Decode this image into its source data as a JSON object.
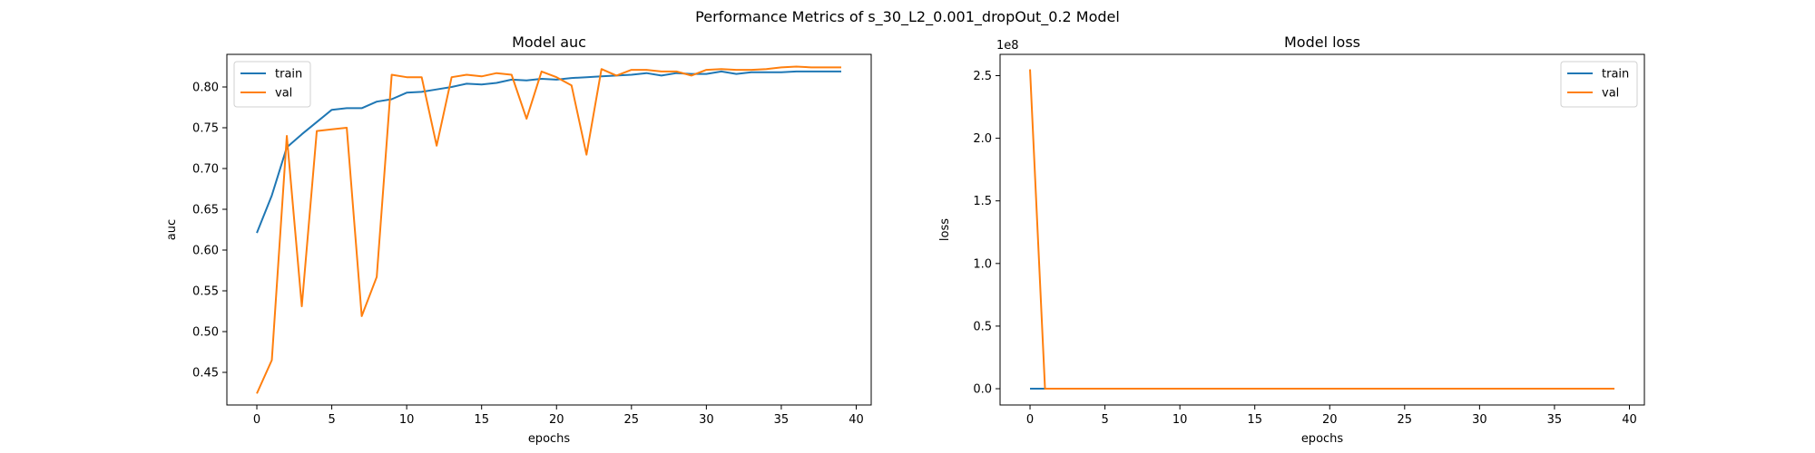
{
  "figure": {
    "suptitle": "Performance Metrics of s_30_L2_0.001_dropOut_0.2 Model"
  },
  "colors": {
    "train": "#1f77b4",
    "val": "#ff7f0e",
    "axes": "#000000"
  },
  "chart_data": [
    {
      "type": "line",
      "title": "Model auc",
      "xlabel": "epochs",
      "ylabel": "auc",
      "xlim": [
        -2,
        41
      ],
      "ylim": [
        0.41,
        0.84
      ],
      "xticks": [
        0,
        5,
        10,
        15,
        20,
        25,
        30,
        35,
        40
      ],
      "yticks": [
        0.45,
        0.5,
        0.55,
        0.6,
        0.65,
        0.7,
        0.75,
        0.8
      ],
      "ytick_labels": [
        "0.45",
        "0.50",
        "0.55",
        "0.60",
        "0.65",
        "0.70",
        "0.75",
        "0.80"
      ],
      "offset_label": "",
      "legend_position": "upper left",
      "x": [
        0,
        1,
        2,
        3,
        4,
        5,
        6,
        7,
        8,
        9,
        10,
        11,
        12,
        13,
        14,
        15,
        16,
        17,
        18,
        19,
        20,
        21,
        22,
        23,
        24,
        25,
        26,
        27,
        28,
        29,
        30,
        31,
        32,
        33,
        34,
        35,
        36,
        37,
        38,
        39
      ],
      "series": [
        {
          "name": "train",
          "color_key": "train",
          "values": [
            0.621,
            0.667,
            0.726,
            0.742,
            0.757,
            0.772,
            0.774,
            0.774,
            0.782,
            0.785,
            0.793,
            0.794,
            0.797,
            0.8,
            0.804,
            0.803,
            0.805,
            0.809,
            0.808,
            0.81,
            0.809,
            0.811,
            0.812,
            0.813,
            0.814,
            0.815,
            0.817,
            0.814,
            0.817,
            0.816,
            0.816,
            0.819,
            0.816,
            0.818,
            0.818,
            0.818,
            0.819,
            0.819,
            0.819,
            0.819
          ]
        },
        {
          "name": "val",
          "color_key": "val",
          "values": [
            0.424,
            0.465,
            0.74,
            0.531,
            0.746,
            0.748,
            0.75,
            0.519,
            0.567,
            0.815,
            0.812,
            0.812,
            0.728,
            0.812,
            0.815,
            0.813,
            0.817,
            0.815,
            0.761,
            0.819,
            0.812,
            0.802,
            0.717,
            0.822,
            0.814,
            0.821,
            0.821,
            0.819,
            0.819,
            0.814,
            0.821,
            0.822,
            0.821,
            0.821,
            0.822,
            0.824,
            0.825,
            0.824,
            0.824,
            0.824
          ]
        }
      ]
    },
    {
      "type": "line",
      "title": "Model loss",
      "xlabel": "epochs",
      "ylabel": "loss",
      "xlim": [
        -2,
        41
      ],
      "ylim": [
        -0.13,
        2.67
      ],
      "xticks": [
        0,
        5,
        10,
        15,
        20,
        25,
        30,
        35,
        40
      ],
      "yticks": [
        0.0,
        0.5,
        1.0,
        1.5,
        2.0,
        2.5
      ],
      "ytick_labels": [
        "0.0",
        "0.5",
        "1.0",
        "1.5",
        "2.0",
        "2.5"
      ],
      "offset_label": "1e8",
      "legend_position": "upper right",
      "x": [
        0,
        1,
        2,
        3,
        4,
        5,
        6,
        7,
        8,
        9,
        10,
        11,
        12,
        13,
        14,
        15,
        16,
        17,
        18,
        19,
        20,
        21,
        22,
        23,
        24,
        25,
        26,
        27,
        28,
        29,
        30,
        31,
        32,
        33,
        34,
        35,
        36,
        37,
        38,
        39
      ],
      "series": [
        {
          "name": "train",
          "color_key": "train",
          "values": [
            0,
            0,
            0,
            0,
            0,
            0,
            0,
            0,
            0,
            0,
            0,
            0,
            0,
            0,
            0,
            0,
            0,
            0,
            0,
            0,
            0,
            0,
            0,
            0,
            0,
            0,
            0,
            0,
            0,
            0,
            0,
            0,
            0,
            0,
            0,
            0,
            0,
            0,
            0,
            0
          ]
        },
        {
          "name": "val",
          "color_key": "val",
          "values": [
            2.55,
            0,
            0,
            0,
            0,
            0,
            0,
            0,
            0,
            0,
            0,
            0,
            0,
            0,
            0,
            0,
            0,
            0,
            0,
            0,
            0,
            0,
            0,
            0,
            0,
            0,
            0,
            0,
            0,
            0,
            0,
            0,
            0,
            0,
            0,
            0,
            0,
            0,
            0,
            0
          ]
        }
      ]
    }
  ]
}
